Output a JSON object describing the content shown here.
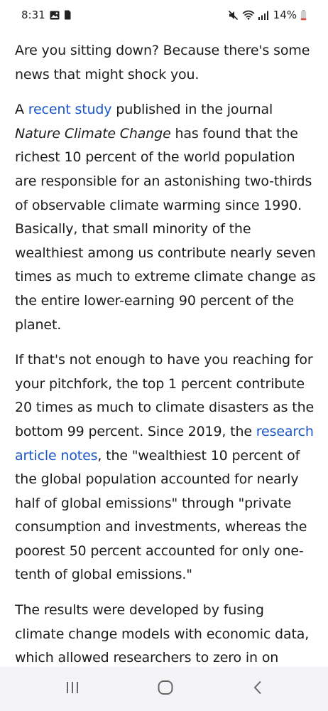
{
  "status_bar": {
    "time": "8:31",
    "battery": "14%",
    "icons": [
      "image-icon",
      "sim-icon",
      "mute-icon",
      "wifi-icon",
      "signal-icon",
      "battery-icon"
    ]
  },
  "article": {
    "p1": "Are you sitting down? Because there's some news that might shock you.",
    "p2": {
      "before_link": "A ",
      "link": "recent study",
      "after_link": " published in the journal ",
      "journal": "Nature Climate Change",
      "rest": " has found that the richest 10 percent of the world population are responsible for an astonishing two-thirds of observable climate warming since 1990. Basically, that small minority of the wealthiest among us contribute nearly seven times as much to extreme climate change as the entire lower-earning 90 percent of the planet."
    },
    "p3": {
      "before_link": "If that's not enough to have you reaching for your pitchfork, the top 1 percent contribute 20 times as much to climate disasters as the bottom 99 percent. Since 2019, the ",
      "link": "research article notes",
      "after_link": ", the \"wealthiest 10 percent of the global population accounted for nearly half of global emissions\" through \"private consumption and investments, whereas the poorest 50 percent accounted for only one-tenth of global emissions.\""
    },
    "p4": "The results were developed by fusing climate change models with economic data, which allowed researchers to zero in on"
  },
  "colors": {
    "link": "#1a55c7",
    "text": "#1c1c1c",
    "nav_bar": "#f4f4f6"
  },
  "nav": {
    "icons": [
      "recent-apps-icon",
      "home-icon",
      "back-icon"
    ]
  }
}
